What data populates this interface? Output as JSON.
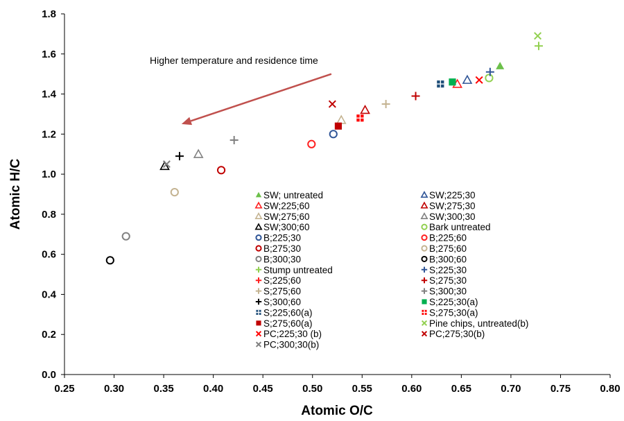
{
  "chart_data": {
    "type": "scatter",
    "xlabel": "Atomic O/C",
    "ylabel": "Atomic H/C",
    "xlim": [
      0.25,
      0.8
    ],
    "ylim": [
      0.0,
      1.8
    ],
    "xticks": [
      "0.25",
      "0.30",
      "0.35",
      "0.40",
      "0.45",
      "0.50",
      "0.55",
      "0.60",
      "0.65",
      "0.70",
      "0.75",
      "0.80"
    ],
    "yticks": [
      "0.0",
      "0.2",
      "0.4",
      "0.6",
      "0.8",
      "1.0",
      "1.2",
      "1.4",
      "1.6",
      "1.8"
    ],
    "grid": false,
    "annotation": {
      "text": "Higher temperature and residence time",
      "arrow_from": [
        0.519,
        1.5
      ],
      "arrow_to": [
        0.368,
        1.25
      ]
    },
    "series": [
      {
        "name": "SW; untreated",
        "marker": "triangle-filled",
        "color": "#6cc04a",
        "points": [
          [
            0.689,
            1.54
          ]
        ]
      },
      {
        "name": "SW;225;30",
        "marker": "triangle-open",
        "color": "#2f5597",
        "points": [
          [
            0.656,
            1.47
          ]
        ]
      },
      {
        "name": "SW;225;60",
        "marker": "triangle-open",
        "color": "#ff2020",
        "points": [
          [
            0.646,
            1.45
          ]
        ]
      },
      {
        "name": "SW;275;30",
        "marker": "triangle-open",
        "color": "#c00000",
        "points": [
          [
            0.553,
            1.32
          ]
        ]
      },
      {
        "name": "SW;275;60",
        "marker": "triangle-open",
        "color": "#c4b391",
        "points": [
          [
            0.529,
            1.27
          ]
        ]
      },
      {
        "name": "SW;300;30",
        "marker": "triangle-open",
        "color": "#808080",
        "points": [
          [
            0.385,
            1.1
          ]
        ]
      },
      {
        "name": "SW;300;60",
        "marker": "triangle-open",
        "color": "#000000",
        "points": [
          [
            0.351,
            1.04
          ]
        ]
      },
      {
        "name": "Bark untreated",
        "marker": "circle-open",
        "color": "#92d050",
        "points": [
          [
            0.678,
            1.48
          ]
        ]
      },
      {
        "name": "B;225;30",
        "marker": "circle-open",
        "color": "#2f5597",
        "points": [
          [
            0.521,
            1.2
          ]
        ]
      },
      {
        "name": "B;225;60",
        "marker": "circle-open",
        "color": "#ff2020",
        "points": [
          [
            0.499,
            1.15
          ]
        ]
      },
      {
        "name": "B;275;30",
        "marker": "circle-open",
        "color": "#c00000",
        "points": [
          [
            0.408,
            1.02
          ]
        ]
      },
      {
        "name": "B;275;60",
        "marker": "circle-open",
        "color": "#c4b391",
        "points": [
          [
            0.361,
            0.91
          ]
        ]
      },
      {
        "name": "B;300;30",
        "marker": "circle-open",
        "color": "#808080",
        "points": [
          [
            0.312,
            0.69
          ]
        ]
      },
      {
        "name": "B;300;60",
        "marker": "circle-open",
        "color": "#000000",
        "points": [
          [
            0.296,
            0.57
          ]
        ]
      },
      {
        "name": "Stump untreated",
        "marker": "plus",
        "color": "#92d050",
        "points": [
          [
            0.728,
            1.64
          ]
        ]
      },
      {
        "name": "S;225;30",
        "marker": "plus",
        "color": "#2f5597",
        "points": [
          [
            0.679,
            1.51
          ]
        ]
      },
      {
        "name": "S;225;60",
        "marker": "plus",
        "color": "#ff2020",
        "points": []
      },
      {
        "name": "S;275;30",
        "marker": "plus",
        "color": "#c00000",
        "points": [
          [
            0.604,
            1.39
          ]
        ]
      },
      {
        "name": "S;275;60",
        "marker": "plus",
        "color": "#c4b391",
        "points": [
          [
            0.574,
            1.35
          ]
        ]
      },
      {
        "name": "S;300;30",
        "marker": "plus",
        "color": "#808080",
        "points": [
          [
            0.421,
            1.17
          ]
        ]
      },
      {
        "name": "S;300;60",
        "marker": "plus",
        "color": "#000000",
        "points": [
          [
            0.366,
            1.09
          ]
        ]
      },
      {
        "name": "S;225;30(a)",
        "marker": "square-filled",
        "color": "#00b050",
        "points": [
          [
            0.641,
            1.46
          ]
        ]
      },
      {
        "name": "S;225;60(a)",
        "marker": "square-plus",
        "color": "#1f4e79",
        "points": [
          [
            0.629,
            1.45
          ]
        ]
      },
      {
        "name": "S;275;30(a)",
        "marker": "square-plus",
        "color": "#ff0000",
        "points": [
          [
            0.548,
            1.28
          ]
        ]
      },
      {
        "name": "S;275;60(a)",
        "marker": "square-filled",
        "color": "#c00000",
        "points": [
          [
            0.526,
            1.24
          ]
        ]
      },
      {
        "name": "Pine chips, untreated(b)",
        "marker": "x",
        "color": "#92d050",
        "points": [
          [
            0.727,
            1.69
          ]
        ]
      },
      {
        "name": "PC;225;30 (b)",
        "marker": "x",
        "color": "#ff0000",
        "points": [
          [
            0.668,
            1.47
          ]
        ]
      },
      {
        "name": "PC;275;30(b)",
        "marker": "x",
        "color": "#c00000",
        "points": [
          [
            0.52,
            1.35
          ]
        ]
      },
      {
        "name": "PC;300;30(b)",
        "marker": "x",
        "color": "#808080",
        "points": [
          [
            0.353,
            1.05
          ]
        ]
      }
    ]
  }
}
